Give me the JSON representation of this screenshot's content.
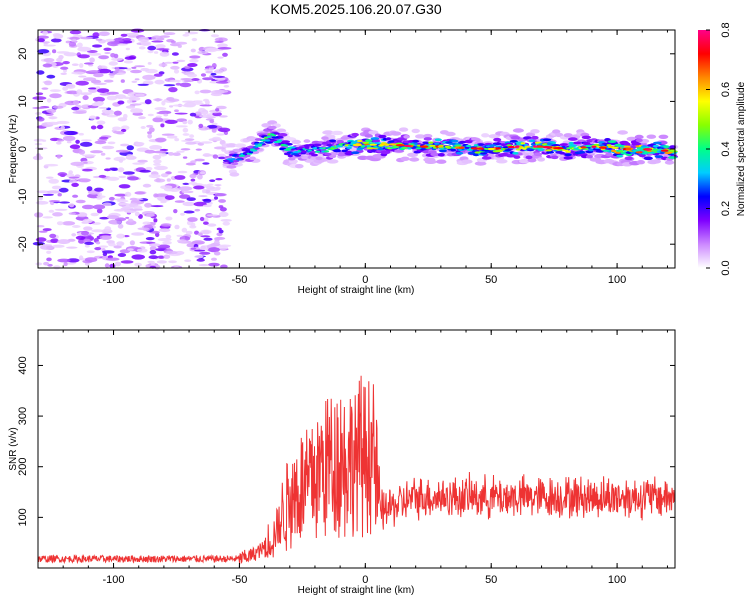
{
  "title": "KOM5.2025.106.20.07.G30",
  "chart_data": [
    {
      "type": "heatmap",
      "xlabel": "Height of straight line (km)",
      "ylabel": "Frequency (Hz)",
      "xlim": [
        -130,
        123
      ],
      "ylim": [
        -25,
        25
      ],
      "xticks": [
        -100,
        -50,
        0,
        50,
        100
      ],
      "yticks": [
        -20,
        -10,
        0,
        10,
        20
      ],
      "colorbar": {
        "label": "Normalized spectral amplitude",
        "range": [
          0,
          0.8
        ],
        "ticks": [
          0.0,
          0.2,
          0.4,
          0.6,
          0.8
        ],
        "colors": [
          "#ffffff",
          "#cc88ff",
          "#7f00ff",
          "#0000ff",
          "#00ccff",
          "#00ff88",
          "#88ff00",
          "#ffff00",
          "#ff8800",
          "#ff0000",
          "#ff0088"
        ]
      },
      "noise_region_x": [
        -130,
        -55
      ],
      "ridge": {
        "x": [
          -55,
          -50,
          -45,
          -40,
          -37,
          -33,
          -28,
          -20,
          -10,
          0,
          10,
          20,
          30,
          40,
          50,
          60,
          70,
          80,
          90,
          100,
          110,
          123
        ],
        "freq": [
          -2.5,
          -1.5,
          -0.5,
          2.0,
          3.0,
          1.0,
          -1.0,
          0.0,
          0.5,
          1.0,
          1.0,
          0.5,
          0.5,
          0.2,
          0.0,
          0.5,
          0.5,
          0.0,
          0.5,
          0.0,
          0.0,
          -0.5
        ],
        "amplitude": [
          0.25,
          0.3,
          0.3,
          0.35,
          0.4,
          0.35,
          0.3,
          0.3,
          0.4,
          0.55,
          0.45,
          0.4,
          0.45,
          0.4,
          0.4,
          0.45,
          0.5,
          0.45,
          0.5,
          0.55,
          0.55,
          0.5
        ]
      }
    },
    {
      "type": "line",
      "xlabel": "Height of straight line (km)",
      "ylabel": "SNR (v/v)",
      "xlim": [
        -130,
        123
      ],
      "ylim": [
        0,
        470
      ],
      "xticks": [
        -100,
        -50,
        0,
        50,
        100
      ],
      "yticks": [
        100,
        200,
        300,
        400
      ],
      "color": "#ee3333",
      "series_profile": {
        "x": [
          -130,
          -50,
          -45,
          -40,
          -35,
          -30,
          -25,
          -20,
          -15,
          -10,
          -5,
          0,
          3,
          6,
          10,
          20,
          40,
          60,
          80,
          100,
          123
        ],
        "snr": [
          18,
          18,
          25,
          40,
          80,
          150,
          170,
          190,
          220,
          230,
          220,
          240,
          250,
          110,
          120,
          140,
          140,
          140,
          140,
          140,
          140
        ]
      }
    }
  ]
}
